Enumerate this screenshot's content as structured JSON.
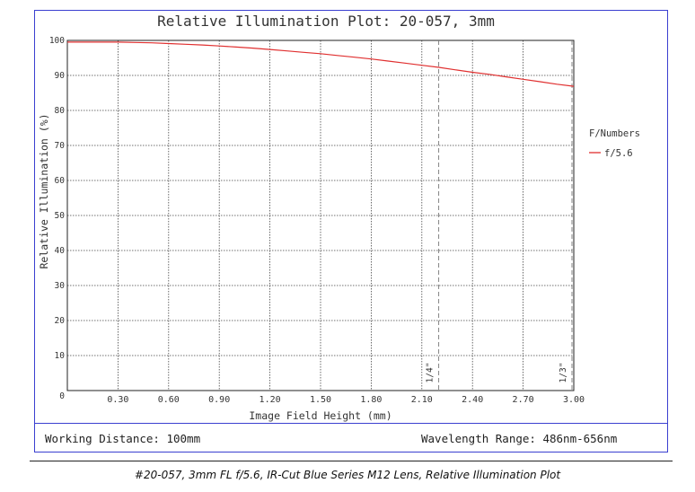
{
  "chart_data": {
    "type": "line",
    "title": "Relative Illumination Plot: 20-057, 3mm",
    "xlabel": "Image Field Height (mm)",
    "ylabel": "Relative Illumination (%)",
    "xlim": [
      0,
      3.0
    ],
    "ylim": [
      0,
      100
    ],
    "x_ticks": [
      "0.30",
      "0.60",
      "0.90",
      "1.20",
      "1.50",
      "1.80",
      "2.10",
      "2.40",
      "2.70",
      "3.00"
    ],
    "x_tick_values": [
      0.3,
      0.6,
      0.9,
      1.2,
      1.5,
      1.8,
      2.1,
      2.4,
      2.7,
      3.0
    ],
    "y_ticks": [
      "0",
      "10",
      "20",
      "30",
      "40",
      "50",
      "60",
      "70",
      "80",
      "90",
      "100"
    ],
    "y_tick_values": [
      0,
      10,
      20,
      30,
      40,
      50,
      60,
      70,
      80,
      90,
      100
    ],
    "grid": true,
    "legend_title": "F/Numbers",
    "legend_position": "right",
    "series": [
      {
        "name": "f/5.6",
        "color": "#e03030",
        "x": [
          0.0,
          0.1,
          0.2,
          0.3,
          0.4,
          0.5,
          0.6,
          0.7,
          0.8,
          0.9,
          1.0,
          1.1,
          1.2,
          1.3,
          1.4,
          1.5,
          1.6,
          1.7,
          1.8,
          1.9,
          2.0,
          2.1,
          2.2,
          2.3,
          2.4,
          2.5,
          2.6,
          2.7,
          2.8,
          2.9,
          3.0
        ],
        "y": [
          99.5,
          99.5,
          99.5,
          99.5,
          99.4,
          99.3,
          99.1,
          98.9,
          98.7,
          98.4,
          98.1,
          97.8,
          97.4,
          97.0,
          96.6,
          96.2,
          95.7,
          95.2,
          94.7,
          94.1,
          93.5,
          92.9,
          92.3,
          91.6,
          90.9,
          90.3,
          89.6,
          88.9,
          88.2,
          87.5,
          86.9
        ]
      }
    ],
    "reference_lines": [
      {
        "x": 2.2,
        "label": "1/4\""
      },
      {
        "x": 3.0,
        "label": "1/3\""
      }
    ]
  },
  "footer": {
    "working_distance": "Working Distance: 100mm",
    "wavelength_range": "Wavelength Range: 486nm-656nm"
  },
  "caption": "#20-057, 3mm FL f/5.6, IR-Cut Blue Series M12 Lens, Relative Illumination Plot"
}
